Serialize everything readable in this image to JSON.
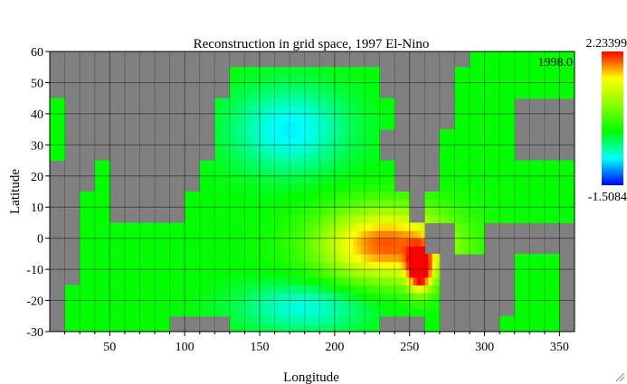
{
  "chart_data": {
    "type": "heatmap",
    "title": "Reconstruction in grid space, 1997 El-Nino",
    "xlabel": "Longitude",
    "ylabel": "Latitude",
    "xlim": [
      10,
      360
    ],
    "ylim": [
      -30,
      60
    ],
    "xticks": [
      50,
      100,
      150,
      200,
      250,
      300,
      350
    ],
    "yticks": [
      -30,
      -20,
      -10,
      0,
      10,
      20,
      30,
      40,
      50,
      60
    ],
    "colorbar": {
      "max_label": "2.23399",
      "min_label": "-1.5084",
      "vmin": -1.5084,
      "vmax": 2.23399
    },
    "time_label": "1998.0",
    "grid": true,
    "land_color": "#808080",
    "cell_size_degrees": 10,
    "ocean_mask": [
      {
        "lat": 60,
        "lon_ranges": [
          [
            290,
            360
          ]
        ]
      },
      {
        "lat": 50,
        "lon_ranges": [
          [
            130,
            230
          ],
          [
            280,
            360
          ]
        ]
      },
      {
        "lat": 40,
        "lon_ranges": [
          [
            10,
            20
          ],
          [
            120,
            240
          ],
          [
            280,
            320
          ]
        ]
      },
      {
        "lat": 30,
        "lon_ranges": [
          [
            10,
            20
          ],
          [
            120,
            230
          ],
          [
            270,
            320
          ]
        ]
      },
      {
        "lat": 20,
        "lon_ranges": [
          [
            40,
            50
          ],
          [
            110,
            240
          ],
          [
            270,
            360
          ]
        ]
      },
      {
        "lat": 10,
        "lon_ranges": [
          [
            30,
            50
          ],
          [
            100,
            250
          ],
          [
            260,
            360
          ]
        ]
      },
      {
        "lat": 0,
        "lon_ranges": [
          [
            30,
            260
          ],
          [
            280,
            300
          ]
        ]
      },
      {
        "lat": -10,
        "lon_ranges": [
          [
            30,
            270
          ],
          [
            320,
            350
          ]
        ]
      },
      {
        "lat": -20,
        "lon_ranges": [
          [
            20,
            270
          ],
          [
            320,
            350
          ]
        ]
      },
      {
        "lat": -30,
        "lon_ranges": [
          [
            20,
            90
          ],
          [
            130,
            230
          ],
          [
            260,
            270
          ],
          [
            310,
            350
          ]
        ]
      }
    ],
    "anomaly_field": {
      "background": 0.0,
      "features": [
        {
          "type": "warm",
          "center_lon": 235,
          "center_lat": -2,
          "peak": 2.0,
          "lon_spread": 45,
          "lat_spread": 12
        },
        {
          "type": "warm",
          "center_lon": 257,
          "center_lat": -10,
          "peak": 2.23,
          "lon_spread": 8,
          "lat_spread": 7
        },
        {
          "type": "cool",
          "center_lon": 170,
          "center_lat": 35,
          "peak": -0.8,
          "lon_spread": 40,
          "lat_spread": 14
        },
        {
          "type": "cool",
          "center_lon": 180,
          "center_lat": -22,
          "peak": -0.7,
          "lon_spread": 45,
          "lat_spread": 8
        }
      ]
    }
  }
}
